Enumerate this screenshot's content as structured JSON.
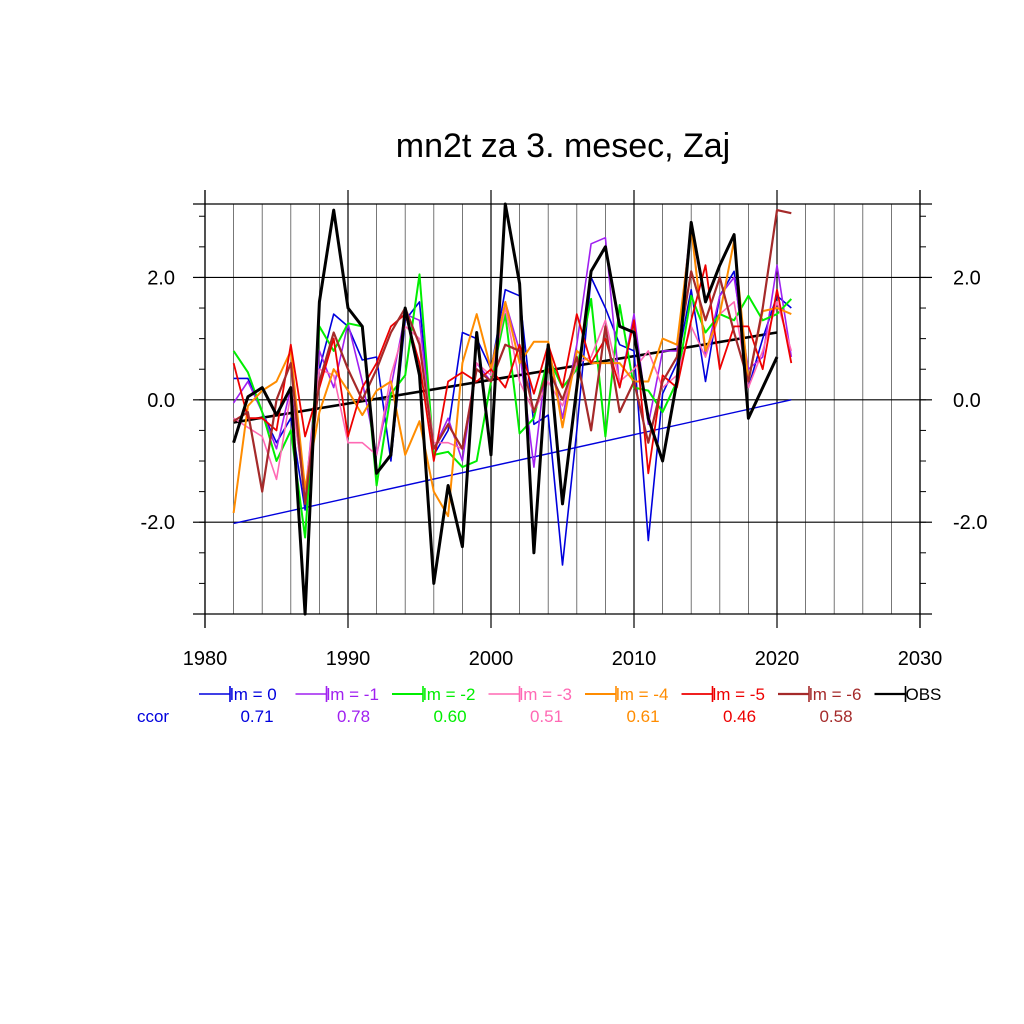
{
  "chart_data": {
    "type": "line",
    "title": "mn2t za 3. mesec, Zaj",
    "xlabel": "",
    "ylabel": "",
    "xlim": [
      1980,
      2030
    ],
    "ylim": [
      -3.5,
      3.2
    ],
    "x_ticks": [
      "1980",
      "1990",
      "2000",
      "2010",
      "2020",
      "2030"
    ],
    "y_ticks": [
      "2.0",
      "0.0",
      "-2.0"
    ],
    "grid": true,
    "legend_position": "bottom",
    "ccor_label": "ccor",
    "x": [
      1982,
      1983,
      1984,
      1985,
      1986,
      1987,
      1988,
      1989,
      1990,
      1991,
      1992,
      1993,
      1994,
      1995,
      1996,
      1997,
      1998,
      1999,
      2000,
      2001,
      2002,
      2003,
      2004,
      2005,
      2006,
      2007,
      2008,
      2009,
      2010,
      2011,
      2012,
      2013,
      2014,
      2015,
      2016,
      2017,
      2018,
      2019,
      2020,
      2021
    ],
    "series": [
      {
        "name": "lm = 0",
        "ccor": "0.71",
        "color": "#0000dd",
        "width": 1.6,
        "values": [
          0.35,
          0.35,
          -0.2,
          -0.7,
          -0.3,
          -1.8,
          0.5,
          1.4,
          1.2,
          0.65,
          0.7,
          -1.0,
          1.3,
          1.6,
          -0.9,
          -0.5,
          1.1,
          1.0,
          0.5,
          1.8,
          1.7,
          -0.4,
          -0.25,
          -2.7,
          -0.5,
          2.0,
          1.5,
          0.9,
          0.8,
          -2.3,
          0.1,
          0.6,
          1.8,
          0.3,
          1.7,
          2.1,
          0.2,
          1.0,
          1.7,
          1.5
        ]
      },
      {
        "name": "lm = -1",
        "ccor": "0.78",
        "color": "#a020f0",
        "width": 1.6,
        "values": [
          -0.05,
          0.3,
          -0.2,
          -0.8,
          0.2,
          -1.6,
          0.8,
          0.2,
          1.25,
          0.3,
          -0.9,
          0.2,
          1.4,
          1.3,
          -0.8,
          -0.3,
          -1.0,
          0.6,
          0.3,
          1.6,
          0.8,
          -1.1,
          0.9,
          -0.3,
          0.9,
          2.55,
          2.65,
          0.2,
          1.4,
          -0.4,
          0.8,
          0.8,
          2.9,
          0.7,
          1.7,
          2.0,
          0.5,
          0.7,
          2.2,
          0.7
        ]
      },
      {
        "name": "lm = -2",
        "ccor": "0.60",
        "color": "#00ee00",
        "width": 2.0,
        "values": [
          0.8,
          0.45,
          -0.2,
          -1.0,
          -0.5,
          -2.25,
          1.2,
          0.8,
          1.25,
          1.2,
          -1.4,
          0.1,
          0.4,
          2.05,
          -0.9,
          -0.85,
          -1.1,
          -1.0,
          0.3,
          1.4,
          -0.55,
          -0.3,
          0.7,
          0.2,
          0.5,
          1.65,
          -0.6,
          1.55,
          0.2,
          0.15,
          -0.2,
          0.3,
          1.7,
          1.1,
          1.4,
          1.3,
          1.7,
          1.3,
          1.4,
          1.65
        ]
      },
      {
        "name": "lm = -3",
        "ccor": "0.51",
        "color": "#ff69b4",
        "width": 1.6,
        "values": [
          -0.3,
          -0.45,
          -0.6,
          -1.3,
          0.1,
          -1.5,
          0.5,
          0.4,
          -0.7,
          -0.7,
          -0.9,
          0.4,
          1.2,
          1.0,
          -0.7,
          -0.7,
          -0.8,
          0.6,
          0.4,
          1.5,
          0.3,
          -0.2,
          0.3,
          -0.1,
          0.6,
          0.7,
          1.3,
          0.3,
          0.5,
          0.8,
          0.2,
          0.4,
          1.2,
          0.7,
          1.4,
          1.6,
          0.2,
          0.8,
          1.6,
          0.8
        ]
      },
      {
        "name": "lm = -4",
        "ccor": "0.61",
        "color": "#ff8c00",
        "width": 2.0,
        "values": [
          -1.85,
          -0.1,
          0.15,
          0.3,
          0.8,
          -1.45,
          -0.2,
          0.5,
          0.15,
          -0.25,
          0.15,
          0.3,
          -0.9,
          -0.35,
          -1.5,
          -1.9,
          0.6,
          1.4,
          0.5,
          1.6,
          0.6,
          0.95,
          0.95,
          -0.45,
          0.8,
          0.6,
          0.6,
          0.6,
          0.3,
          0.3,
          1.0,
          0.9,
          2.8,
          0.8,
          1.4,
          2.6,
          0.3,
          1.45,
          1.5,
          1.4
        ]
      },
      {
        "name": "lm = -5",
        "ccor": "0.46",
        "color": "#ee0000",
        "width": 1.8,
        "values": [
          0.6,
          -0.3,
          -0.3,
          -0.5,
          0.9,
          -0.6,
          0.2,
          1.0,
          -0.6,
          0.2,
          0.6,
          1.2,
          1.4,
          0.6,
          -1.0,
          0.3,
          0.45,
          0.3,
          0.5,
          0.2,
          0.9,
          0.1,
          0.9,
          0.2,
          1.4,
          0.6,
          1.0,
          0.2,
          1.3,
          -1.2,
          0.4,
          0.2,
          1.3,
          2.2,
          0.5,
          1.2,
          1.2,
          0.5,
          1.8,
          0.6
        ]
      },
      {
        "name": "lm = -6",
        "ccor": "0.58",
        "color": "#a52a2a",
        "width": 2.2,
        "values": [
          -0.35,
          -0.2,
          -1.5,
          0.0,
          0.6,
          -1.7,
          0.3,
          1.1,
          0.5,
          0.0,
          0.5,
          1.1,
          1.5,
          0.9,
          -0.8,
          -0.4,
          -0.8,
          0.5,
          0.3,
          0.9,
          0.8,
          -0.2,
          0.5,
          0.0,
          0.7,
          -0.5,
          1.2,
          -0.2,
          0.3,
          -0.7,
          0.3,
          0.7,
          2.1,
          1.3,
          2.0,
          1.1,
          0.3,
          1.5,
          3.1,
          3.05
        ]
      },
      {
        "name": "OBS",
        "ccor": "",
        "color": "#000000",
        "width": 3.0,
        "values": [
          -0.7,
          0.05,
          0.2,
          -0.25,
          0.2,
          -3.5,
          1.6,
          3.1,
          1.5,
          1.2,
          -1.2,
          -0.9,
          1.5,
          0.4,
          -3.0,
          -1.4,
          -2.4,
          1.1,
          -0.9,
          3.2,
          1.9,
          -2.5,
          0.9,
          -1.7,
          0.2,
          2.1,
          2.5,
          1.2,
          1.1,
          -0.3,
          -1.0,
          0.3,
          2.9,
          1.6,
          2.2,
          2.7,
          -0.3,
          0.2,
          0.7,
          null
        ]
      }
    ],
    "trend_lines": [
      {
        "color": "#000000",
        "width": 2.6,
        "x": [
          1982,
          2020
        ],
        "y": [
          -0.37,
          1.1
        ]
      },
      {
        "color": "#0000dd",
        "width": 1.4,
        "x": [
          1982,
          2021
        ],
        "y": [
          -2.02,
          0.0
        ]
      }
    ]
  }
}
